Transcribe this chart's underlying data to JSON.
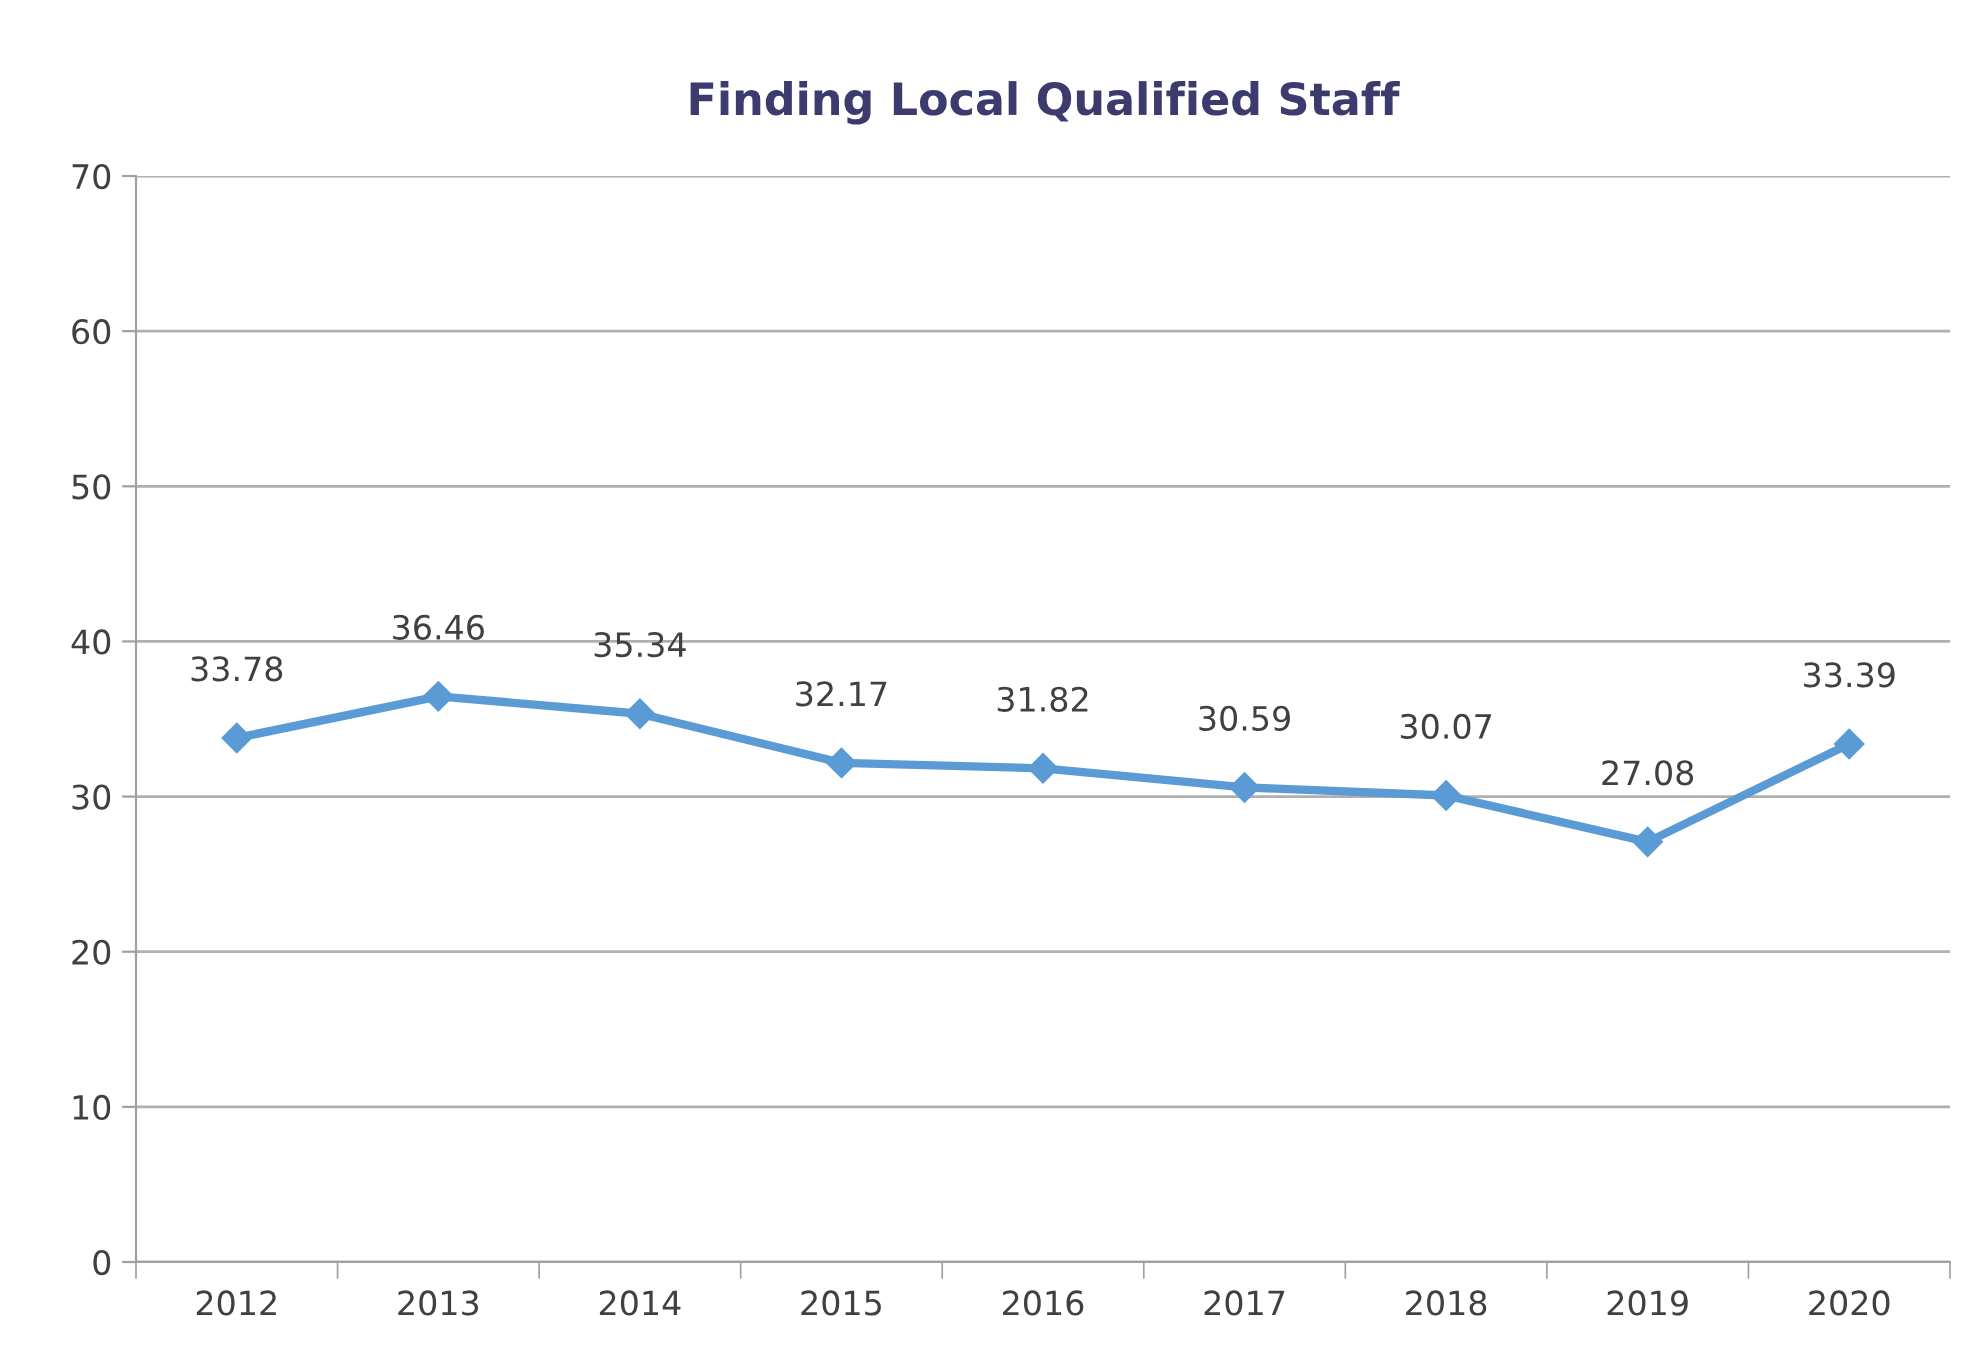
{
  "chart_data": {
    "type": "line",
    "title": "Finding Local Qualified Staff",
    "categories": [
      "2012",
      "2013",
      "2014",
      "2015",
      "2016",
      "2017",
      "2018",
      "2019",
      "2020"
    ],
    "series": [
      {
        "color": "#5b9bd5",
        "values": [
          33.78,
          36.46,
          35.34,
          32.17,
          31.82,
          30.59,
          30.07,
          27.08,
          33.39
        ]
      }
    ],
    "ylim": [
      0,
      70
    ],
    "yticks": [
      0,
      10,
      20,
      30,
      40,
      50,
      60,
      70
    ],
    "grid": "y",
    "marker": "diamond",
    "line_style": "solid",
    "data_labels": true
  }
}
